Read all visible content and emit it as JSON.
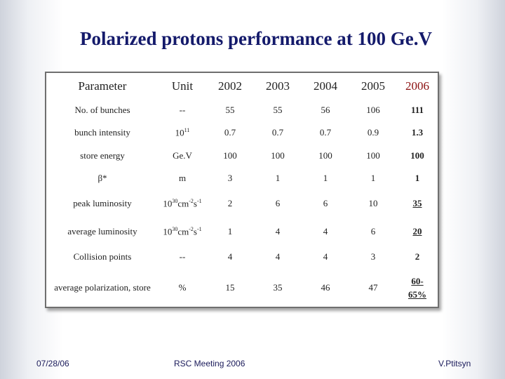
{
  "title": "Polarized protons performance at 100 Ge.V",
  "table": {
    "headers": [
      "Parameter",
      "Unit",
      "2002",
      "2003",
      "2004",
      "2005",
      "2006"
    ],
    "rows": [
      {
        "param": "No. of bunches",
        "unit": "--",
        "v2002": "55",
        "v2003": "55",
        "v2004": "56",
        "v2005": "106",
        "v2006": "111"
      },
      {
        "param": "bunch intensity",
        "unit_base": "10",
        "unit_exp": "11",
        "v2002": "0.7",
        "v2003": "0.7",
        "v2004": "0.7",
        "v2005": "0.9",
        "v2006": "1.3"
      },
      {
        "param": "store energy",
        "unit": "Ge.V",
        "v2002": "100",
        "v2003": "100",
        "v2004": "100",
        "v2005": "100",
        "v2006": "100"
      },
      {
        "param": "β*",
        "unit": "m",
        "v2002": "3",
        "v2003": "1",
        "v2004": "1",
        "v2005": "1",
        "v2006": "1"
      },
      {
        "param": "peak luminosity",
        "unit_base": "10",
        "unit_exp": "30",
        "unit_rest": "cm",
        "unit_exp2": "-2",
        "unit_s": "s",
        "unit_exp3": "-1",
        "v2002": "2",
        "v2003": "6",
        "v2004": "6",
        "v2005": "10",
        "v2006": "35"
      },
      {
        "param": "average luminosity",
        "unit_base": "10",
        "unit_exp": "30",
        "unit_rest": "cm",
        "unit_exp2": "-2",
        "unit_s": "s",
        "unit_exp3": "-1",
        "v2002": "1",
        "v2003": "4",
        "v2004": "4",
        "v2005": "6",
        "v2006": "20"
      },
      {
        "param": "Collision points",
        "unit": "--",
        "v2002": "4",
        "v2003": "4",
        "v2004": "4",
        "v2005": "3",
        "v2006": "2"
      },
      {
        "param": "average polarization, store",
        "unit": "%",
        "v2002": "15",
        "v2003": "35",
        "v2004": "46",
        "v2005": "47",
        "v2006_a": "60-",
        "v2006_b": "65%"
      }
    ]
  },
  "footer": {
    "date": "07/28/06",
    "meeting": "RSC Meeting 2006",
    "author": "V.Ptitsyn"
  }
}
